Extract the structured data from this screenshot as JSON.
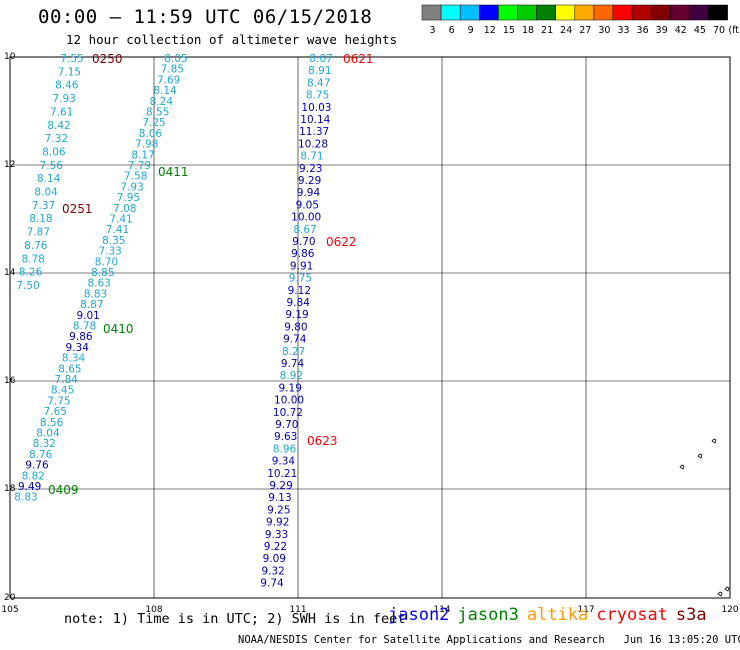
{
  "title": "00:00 – 11:59 UTC 06/15/2018",
  "subtitle": "12 hour collection of altimeter wave heights",
  "color_scale": {
    "colors": [
      "#808080",
      "#00ffff",
      "#00bfff",
      "#0000ff",
      "#00ff00",
      "#00cc00",
      "#008000",
      "#ffff00",
      "#ffaa00",
      "#ff6600",
      "#ff0000",
      "#b30000",
      "#800000",
      "#660033",
      "#400040",
      "#000000"
    ],
    "labels": [
      "3",
      "6",
      "9",
      "12",
      "15",
      "18",
      "21",
      "24",
      "27",
      "30",
      "33",
      "36",
      "39",
      "42",
      "45",
      "70",
      "(ft)"
    ]
  },
  "axes": {
    "x_ticks": [
      "105",
      "108",
      "111",
      "114",
      "117",
      "120"
    ],
    "y_ticks": [
      "10",
      "12",
      "14",
      "16",
      "18",
      "20"
    ]
  },
  "tracks": [
    {
      "values": [
        "7.55",
        "7.15",
        "8.46",
        "7.93",
        "7.61",
        "8.42",
        "7.32",
        "8.06",
        "7.56",
        "8.14",
        "8.04",
        "7.37",
        "8.18",
        "7.87",
        "8.76",
        "8.78",
        "8.26",
        "7.50"
      ],
      "colors": [
        "c",
        "c",
        "c",
        "c",
        "c",
        "c",
        "c",
        "c",
        "c",
        "c",
        "c",
        "c",
        "c",
        "c",
        "c",
        "c",
        "c",
        "c"
      ],
      "x0": 72,
      "x1": 28,
      "y0": 58,
      "dy": 13.35
    },
    {
      "values": [
        "8.05",
        "7.85",
        "7.69",
        "8.14",
        "8.24",
        "8.55",
        "7.25",
        "8.06",
        "7.98",
        "8.17",
        "7.79",
        "7.58",
        "7.93",
        "7.95",
        "7.08",
        "7.41",
        "7.41",
        "8.35",
        "7.33",
        "8.70",
        "8.85",
        "8.63",
        "8.83",
        "8.87",
        "9.01",
        "8.78",
        "9.86",
        "9.34",
        "8.34",
        "8.65",
        "7.84",
        "8.45",
        "7.75",
        "7.65",
        "8.56",
        "8.04",
        "8.32",
        "8.76",
        "9.76",
        "8.82",
        "9.49",
        "8.83"
      ],
      "colors": [
        "c",
        "c",
        "c",
        "c",
        "c",
        "c",
        "c",
        "c",
        "c",
        "c",
        "c",
        "c",
        "c",
        "c",
        "c",
        "c",
        "c",
        "c",
        "c",
        "c",
        "c",
        "c",
        "c",
        "c",
        "b",
        "c",
        "b",
        "b",
        "c",
        "c",
        "c",
        "c",
        "c",
        "c",
        "c",
        "c",
        "c",
        "c",
        "b",
        "c",
        "b",
        "c"
      ],
      "x0": 176,
      "x1": 26,
      "y0": 58,
      "dy": 10.7
    },
    {
      "values": [
        "8.07",
        "8.91",
        "8.47",
        "8.75",
        "10.03",
        "10.14",
        "11.37",
        "10.28",
        "8.71",
        "9.23",
        "9.29",
        "9.94",
        "9.05",
        "10.00",
        "8.67",
        "9.70",
        "9.86",
        "9.91",
        "9.75",
        "9.12",
        "9.84",
        "9.19",
        "9.80",
        "9.74",
        "8.27",
        "9.74",
        "8.92",
        "9.19",
        "10.00",
        "10.72",
        "9.70",
        "9.63",
        "8.96",
        "9.34",
        "10.21",
        "9.29",
        "9.13",
        "9.25",
        "9.92",
        "9.33",
        "9.22",
        "9.09",
        "9.32",
        "9.74"
      ],
      "colors": [
        "c",
        "c",
        "c",
        "c",
        "b",
        "b",
        "b",
        "b",
        "c",
        "b",
        "b",
        "b",
        "b",
        "b",
        "c",
        "b",
        "b",
        "b",
        "c",
        "b",
        "b",
        "b",
        "b",
        "b",
        "c",
        "b",
        "c",
        "b",
        "b",
        "b",
        "b",
        "b",
        "c",
        "b",
        "b",
        "b",
        "b",
        "b",
        "b",
        "b",
        "b",
        "b",
        "b",
        "b"
      ],
      "x0": 321,
      "x1": 272,
      "y0": 58,
      "dy": 12.2
    }
  ],
  "pass_labels": [
    {
      "text": "0250",
      "color": "#800000"
    },
    {
      "text": "0621",
      "color": "#ff0000"
    },
    {
      "text": "0411",
      "color": "#008000"
    },
    {
      "text": "0251",
      "color": "#800000"
    },
    {
      "text": "0622",
      "color": "#ff0000"
    },
    {
      "text": "0410",
      "color": "#008000"
    },
    {
      "text": "0623",
      "color": "#ff0000"
    },
    {
      "text": "0409",
      "color": "#008000"
    }
  ],
  "note": "note: 1) Time is in UTC; 2) SWH is in feet",
  "legend": [
    {
      "name": "jason2",
      "color": "#0000ff"
    },
    {
      "name": "jason3",
      "color": "#008000"
    },
    {
      "name": "altika",
      "color": "#ff9900"
    },
    {
      "name": "cryosat",
      "color": "#ff0000"
    },
    {
      "name": "s3a",
      "color": "#800000"
    }
  ],
  "footer": "NOAA/NESDIS Center for Satellite Applications and Research   Jun 16 13:05:20 UTC 2018"
}
